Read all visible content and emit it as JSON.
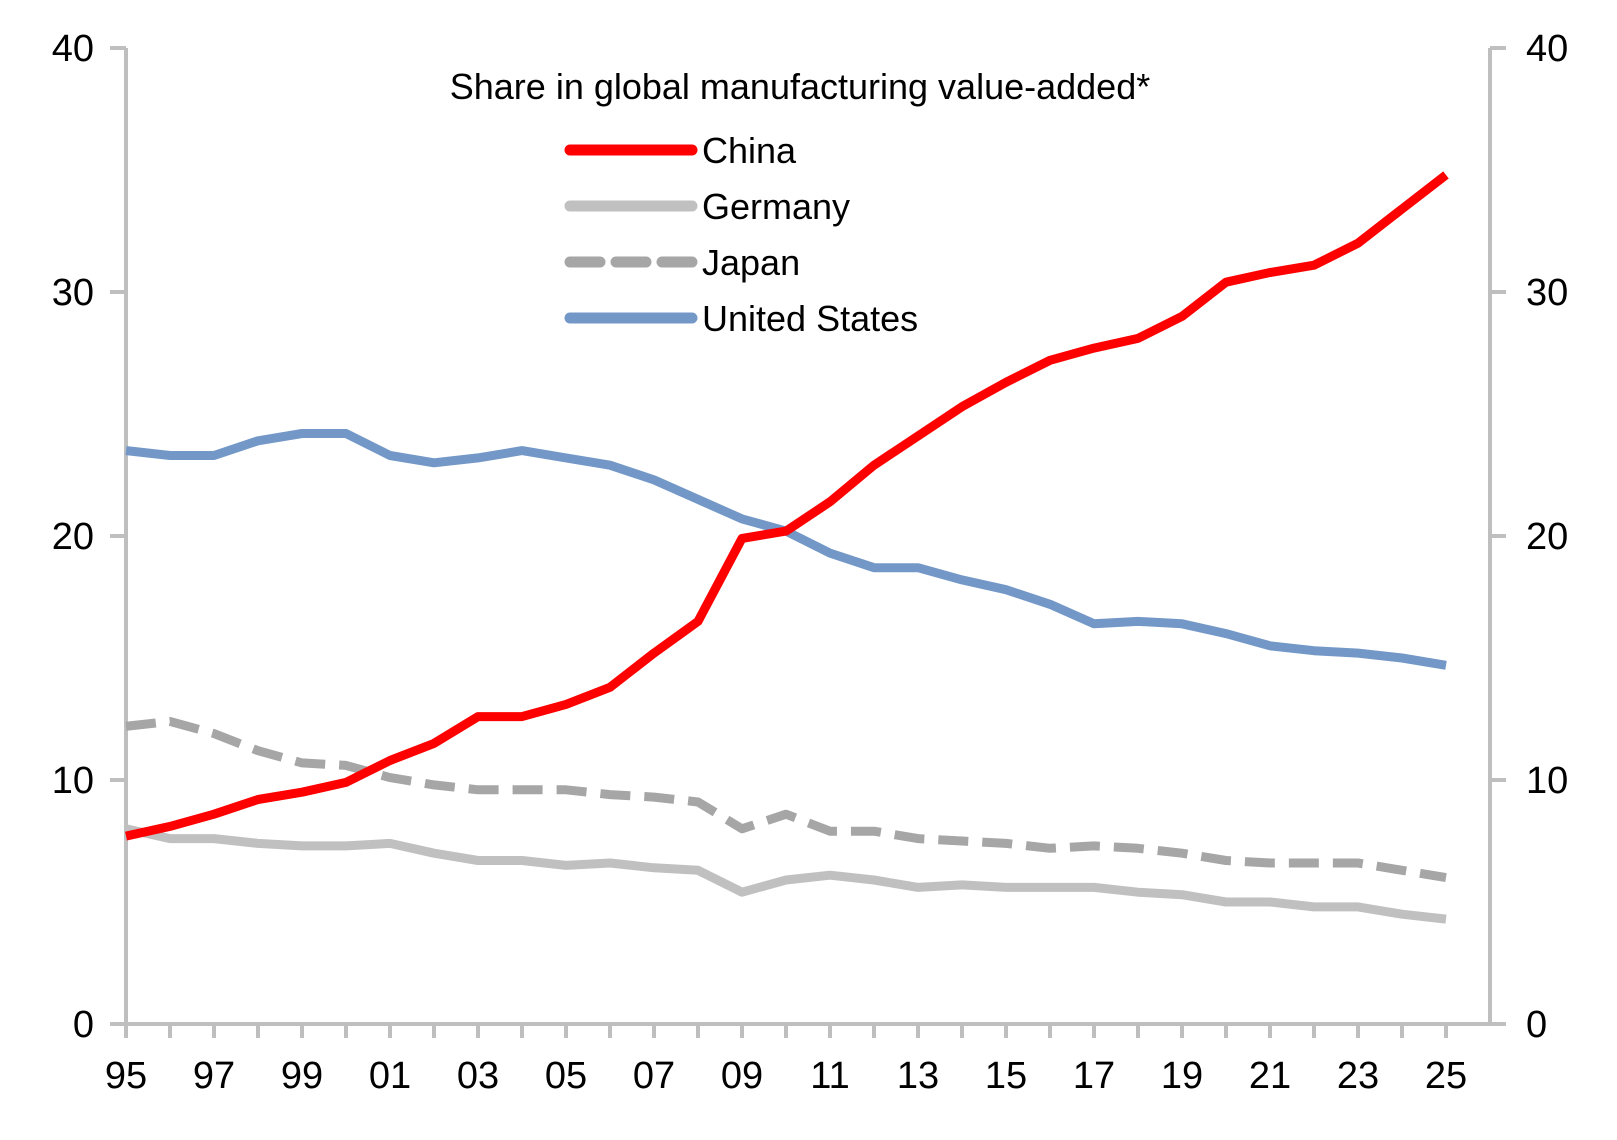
{
  "chart_data": {
    "type": "line",
    "title": "Share in global manufacturing value-added*",
    "x": [
      1995,
      1996,
      1997,
      1998,
      1999,
      2000,
      2001,
      2002,
      2003,
      2004,
      2005,
      2006,
      2007,
      2008,
      2009,
      2010,
      2011,
      2012,
      2013,
      2014,
      2015,
      2016,
      2017,
      2018,
      2019,
      2020,
      2021,
      2022,
      2023,
      2024,
      2025
    ],
    "x_tick_labels": [
      "95",
      "97",
      "99",
      "01",
      "03",
      "05",
      "07",
      "09",
      "11",
      "13",
      "15",
      "17",
      "19",
      "21",
      "23",
      "25"
    ],
    "x_tick_values": [
      1995,
      1997,
      1999,
      2001,
      2003,
      2005,
      2007,
      2009,
      2011,
      2013,
      2015,
      2017,
      2019,
      2021,
      2023,
      2025
    ],
    "ylim": [
      0,
      40
    ],
    "y_ticks": [
      0,
      10,
      20,
      30,
      40
    ],
    "y_tick_labels": [
      "0",
      "10",
      "20",
      "30",
      "40"
    ],
    "secondary_y_tick_labels": [
      "0",
      "10",
      "20",
      "30",
      "40"
    ],
    "xlabel": "",
    "ylabel": "",
    "grid": false,
    "legend_position": "top-center",
    "series": [
      {
        "name": "China",
        "color": "#ff0000",
        "style": "solid",
        "values": [
          7.7,
          8.1,
          8.6,
          9.2,
          9.5,
          9.9,
          10.8,
          11.5,
          12.6,
          12.6,
          13.1,
          13.8,
          15.2,
          16.5,
          19.9,
          20.2,
          21.4,
          22.9,
          24.1,
          25.3,
          26.3,
          27.2,
          27.7,
          28.1,
          29.0,
          30.4,
          30.8,
          31.1,
          32.0,
          33.4,
          34.8
        ]
      },
      {
        "name": "Germany",
        "color": "#c0c0c0",
        "style": "solid",
        "values": [
          8.0,
          7.6,
          7.6,
          7.4,
          7.3,
          7.3,
          7.4,
          7.0,
          6.7,
          6.7,
          6.5,
          6.6,
          6.4,
          6.3,
          5.4,
          5.9,
          6.1,
          5.9,
          5.6,
          5.7,
          5.6,
          5.6,
          5.6,
          5.4,
          5.3,
          5.0,
          5.0,
          4.8,
          4.8,
          4.5,
          4.3
        ]
      },
      {
        "name": "Japan",
        "color": "#a6a6a6",
        "style": "dashed",
        "values": [
          12.2,
          12.4,
          11.9,
          11.2,
          10.7,
          10.6,
          10.1,
          9.8,
          9.6,
          9.6,
          9.6,
          9.4,
          9.3,
          9.1,
          8.0,
          8.6,
          7.9,
          7.9,
          7.6,
          7.5,
          7.4,
          7.2,
          7.3,
          7.2,
          7.0,
          6.7,
          6.6,
          6.6,
          6.6,
          6.3,
          6.0
        ]
      },
      {
        "name": "United States",
        "color": "#7398c7",
        "style": "solid",
        "values": [
          23.5,
          23.3,
          23.3,
          23.9,
          24.2,
          24.2,
          23.3,
          23.0,
          23.2,
          23.5,
          23.2,
          22.9,
          22.3,
          21.5,
          20.7,
          20.2,
          19.3,
          18.7,
          18.7,
          18.2,
          17.8,
          17.2,
          16.4,
          16.5,
          16.4,
          16.0,
          15.5,
          15.3,
          15.2,
          15.0,
          14.7
        ]
      }
    ]
  }
}
